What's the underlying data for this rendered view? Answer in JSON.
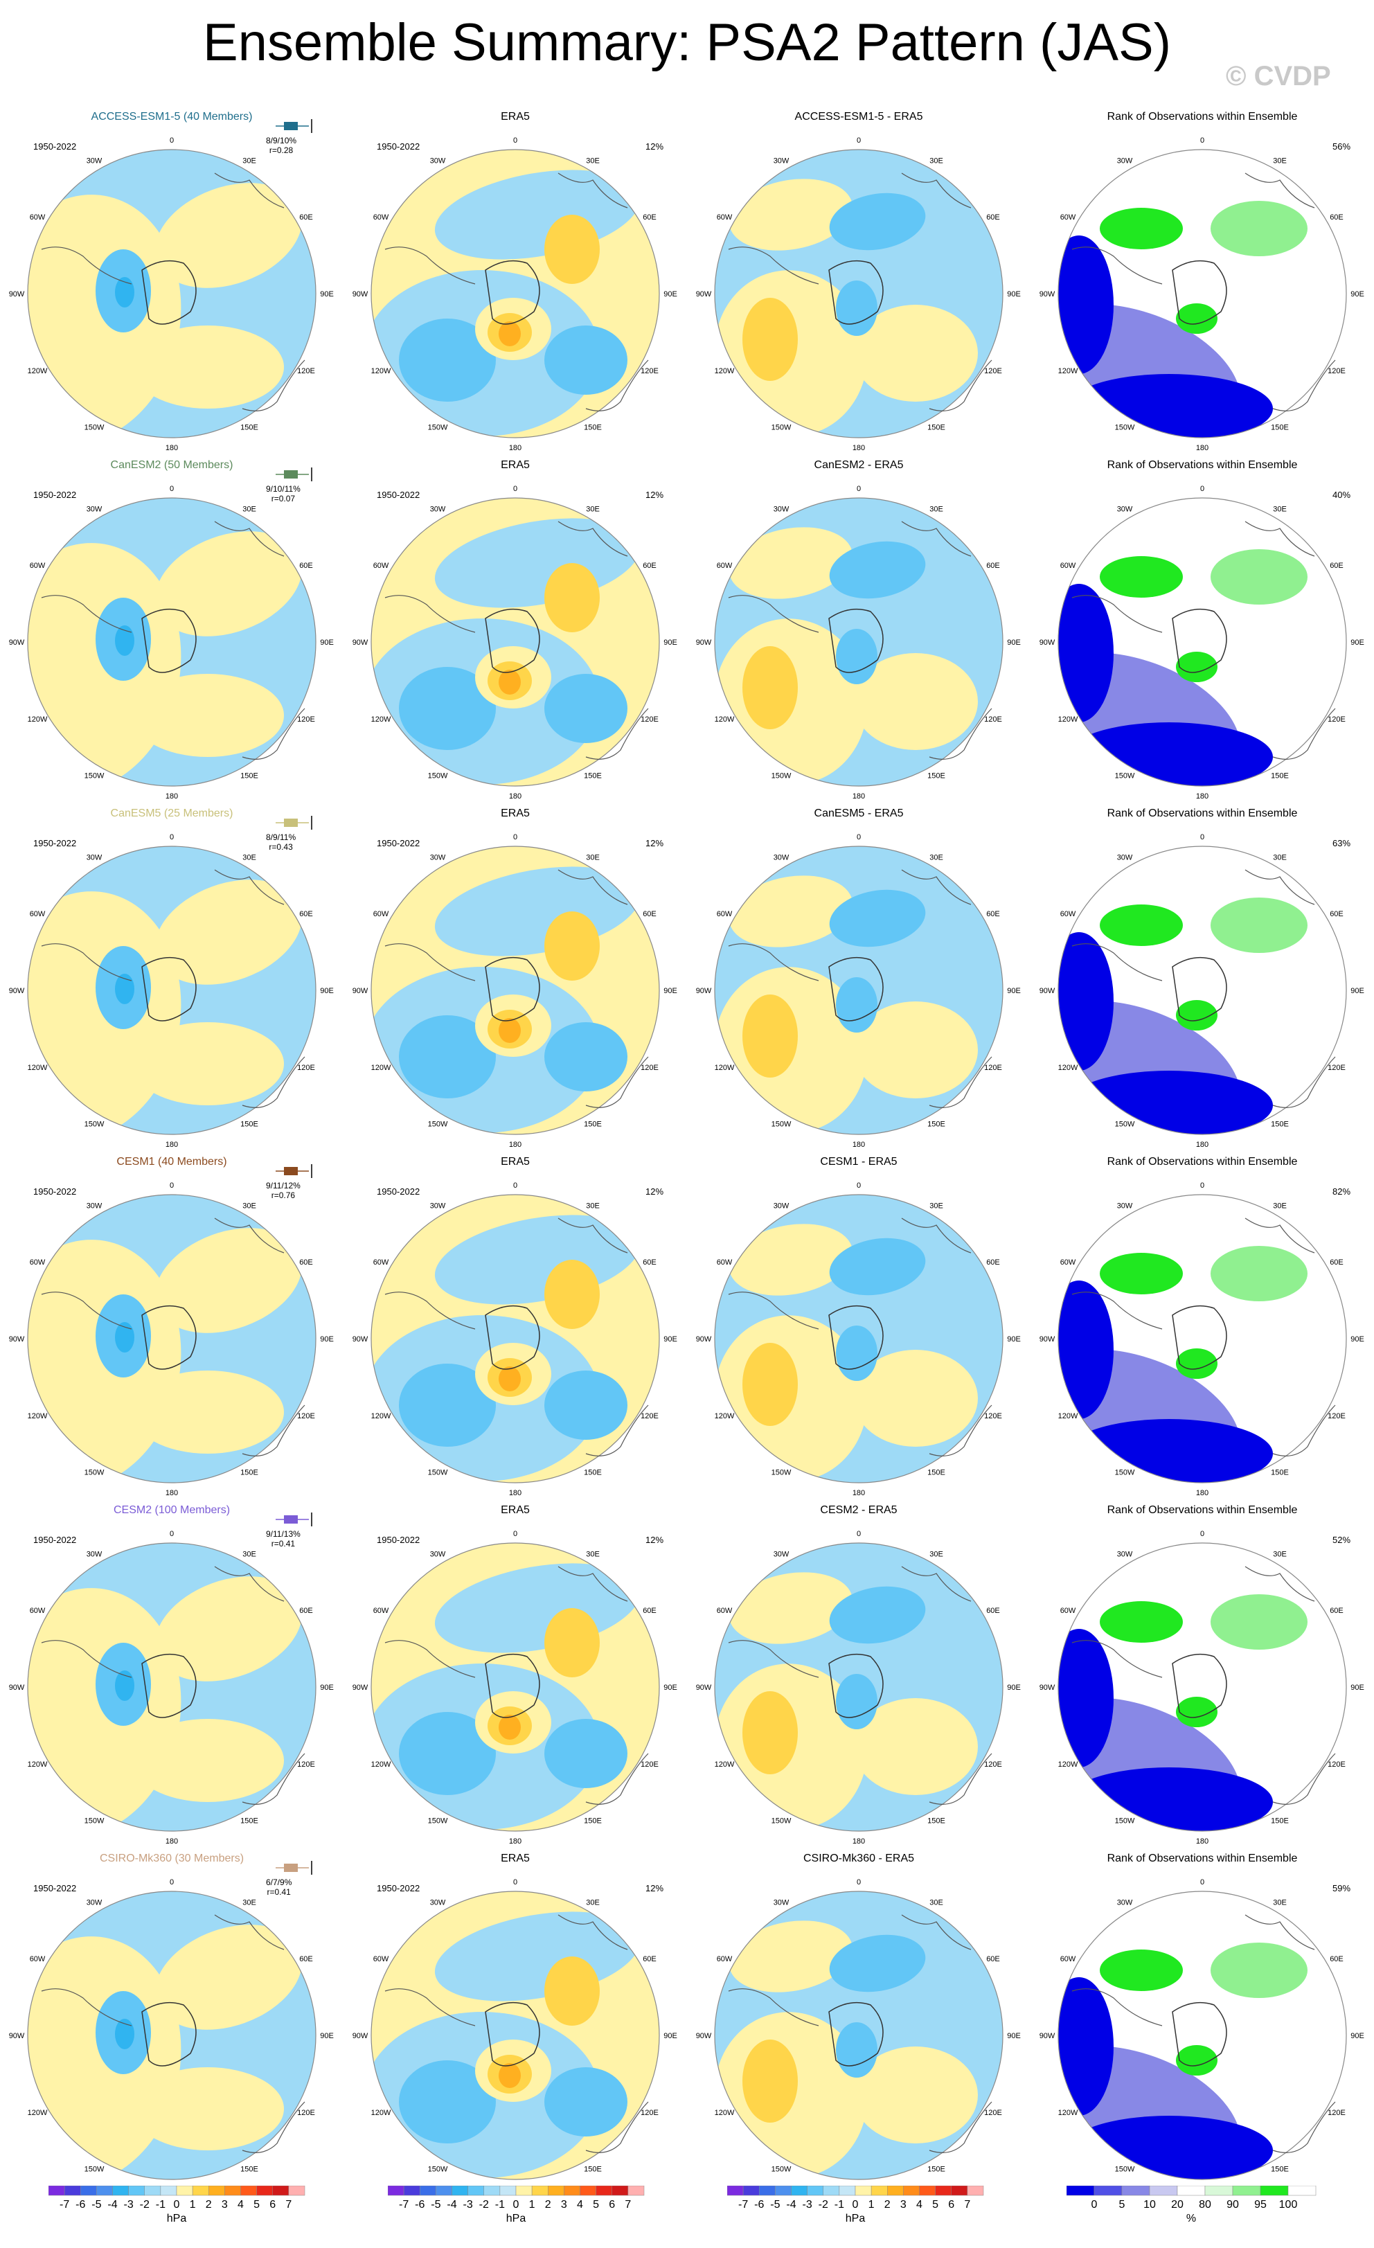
{
  "title": "Ensemble Summary: PSA2 Pattern (JAS)",
  "watermark": "© CVDP",
  "period": "1950-2022",
  "obs_pct": "12%",
  "lon_labels": [
    "0",
    "30E",
    "60E",
    "90E",
    "120E",
    "150E",
    "180",
    "150W",
    "120W",
    "90W",
    "60W",
    "30W"
  ],
  "rows": [
    {
      "model": "ACCESS-ESM1-5 (40 Members)",
      "model_color": "#1f6e8c",
      "pcts": "8/9/10%",
      "r": "r=0.28",
      "diff_title": "ACCESS-ESM1-5 - ERA5",
      "rank_pct": "56%"
    },
    {
      "model": "CanESM2 (50 Members)",
      "model_color": "#5c8a5c",
      "pcts": "9/10/11%",
      "r": "r=0.07",
      "diff_title": "CanESM2 - ERA5",
      "rank_pct": "40%"
    },
    {
      "model": "CanESM5 (25 Members)",
      "model_color": "#c8c07a",
      "pcts": "8/9/11%",
      "r": "r=0.43",
      "diff_title": "CanESM5 - ERA5",
      "rank_pct": "63%"
    },
    {
      "model": "CESM1 (40 Members)",
      "model_color": "#8b4a1f",
      "pcts": "9/11/12%",
      "r": "r=0.76",
      "diff_title": "CESM1 - ERA5",
      "rank_pct": "82%"
    },
    {
      "model": "CESM2 (100 Members)",
      "model_color": "#7b5cd6",
      "pcts": "9/11/13%",
      "r": "r=0.41",
      "diff_title": "CESM2 - ERA5",
      "rank_pct": "52%"
    },
    {
      "model": "CSIRO-Mk360 (30 Members)",
      "model_color": "#c8a080",
      "pcts": "6/7/9%",
      "r": "r=0.41",
      "diff_title": "CSIRO-Mk360 - ERA5",
      "rank_pct": "59%"
    }
  ],
  "obs_title": "ERA5",
  "rank_title": "Rank of Observations within Ensemble",
  "colorbar": {
    "labels": [
      "-7",
      "-6",
      "-5",
      "-4",
      "-3",
      "-2",
      "-1",
      "0",
      "1",
      "2",
      "3",
      "4",
      "5",
      "6",
      "7"
    ],
    "colors": [
      "#7b2be0",
      "#4a3cdc",
      "#3a6ee8",
      "#4d90ee",
      "#30b4f0",
      "#62c6f6",
      "#9edaf6",
      "#c4e6f6",
      "#fff3a8",
      "#ffd54a",
      "#ffb020",
      "#ff8c1a",
      "#ff5a1a",
      "#e8281a",
      "#d01a1a",
      "#ffb0b0"
    ],
    "units": "hPa"
  },
  "rankbar": {
    "labels": [
      "0",
      "5",
      "10",
      "20",
      "80",
      "90",
      "95",
      "100"
    ],
    "colors": [
      "#0000e6",
      "#5050e6",
      "#8888e6",
      "#c8c8f0",
      "#ffffff",
      "#d8f8d8",
      "#90f090",
      "#20e820"
    ],
    "units": "%"
  },
  "chart_data": {
    "type": "heatmap",
    "title": "Ensemble Summary: PSA2 Pattern (JAS)",
    "description_axes": "polar stereographic maps of Southern Hemisphere",
    "units": "hPa",
    "contour_levels": [
      -7,
      -6,
      -5,
      -4,
      -3,
      -2,
      -1,
      0,
      1,
      2,
      3,
      4,
      5,
      6,
      7
    ],
    "rank_levels": [
      0,
      5,
      10,
      20,
      80,
      90,
      95,
      100
    ],
    "rank_units": "%",
    "rows": [
      {
        "model": "ACCESS-ESM1-5",
        "members": 40,
        "pattern_pct": [
          8,
          9,
          10
        ],
        "r": 0.28,
        "obs_pct": 12,
        "rank_pct": 56
      },
      {
        "model": "CanESM2",
        "members": 50,
        "pattern_pct": [
          9,
          10,
          11
        ],
        "r": 0.07,
        "obs_pct": 12,
        "rank_pct": 40
      },
      {
        "model": "CanESM5",
        "members": 25,
        "pattern_pct": [
          8,
          9,
          11
        ],
        "r": 0.43,
        "obs_pct": 12,
        "rank_pct": 63
      },
      {
        "model": "CESM1",
        "members": 40,
        "pattern_pct": [
          9,
          11,
          12
        ],
        "r": 0.76,
        "obs_pct": 12,
        "rank_pct": 82
      },
      {
        "model": "CESM2",
        "members": 100,
        "pattern_pct": [
          9,
          11,
          13
        ],
        "r": 0.41,
        "obs_pct": 12,
        "rank_pct": 52
      },
      {
        "model": "CSIRO-Mk360",
        "members": 30,
        "pattern_pct": [
          6,
          7,
          9
        ],
        "r": 0.41,
        "obs_pct": 12,
        "rank_pct": 59
      }
    ]
  }
}
